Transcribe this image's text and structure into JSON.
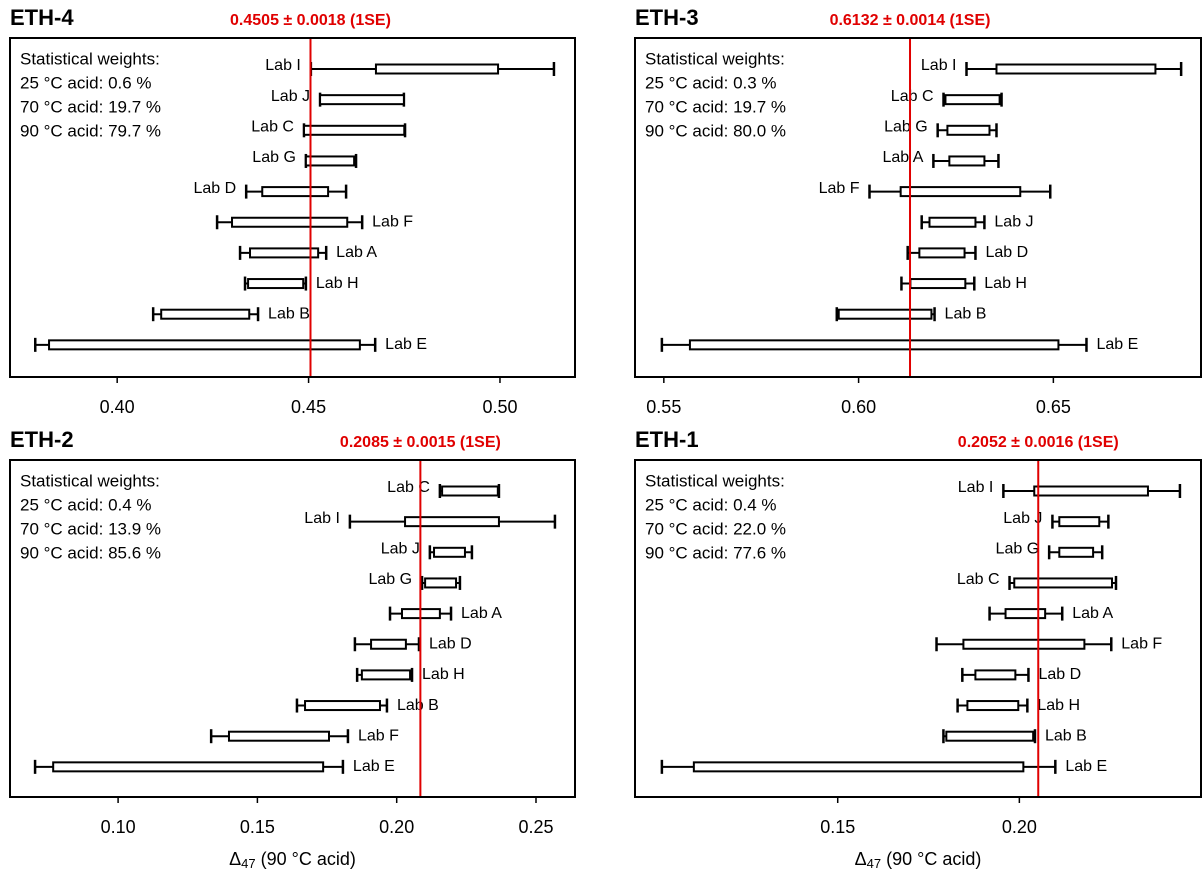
{
  "chart_data": [
    {
      "type": "range",
      "title": "ETH-4",
      "mean": 0.4505,
      "mean_label": "0.4505 ± 0.0018 (1SE)",
      "weights_title": "Statistical weights:",
      "weights": [
        "25 °C acid: 0.6 %",
        "70 °C acid: 19.7 %",
        "90 °C acid: 79.7 %"
      ],
      "categories": [
        "Lab I",
        "Lab J",
        "Lab C",
        "Lab G",
        "Lab D",
        "Lab F",
        "Lab A",
        "Lab H",
        "Lab B",
        "Lab E"
      ],
      "whisker_low": [
        0.4506,
        0.453,
        0.4488,
        0.4493,
        0.4337,
        0.4261,
        0.4321,
        0.4334,
        0.4094,
        0.3786
      ],
      "box_low": [
        0.4676,
        0.453,
        0.4488,
        0.4493,
        0.4379,
        0.43,
        0.4347,
        0.4342,
        0.4115,
        0.3822
      ],
      "box_high": [
        0.4995,
        0.4749,
        0.475,
        0.4619,
        0.4551,
        0.4601,
        0.4525,
        0.4486,
        0.4345,
        0.4634
      ],
      "whisker_high": [
        0.5141,
        0.4749,
        0.4752,
        0.4624,
        0.4598,
        0.464,
        0.4546,
        0.4493,
        0.4368,
        0.4674
      ],
      "xlim": [
        0.372,
        0.5196
      ],
      "xticks": [
        {
          "value": 0.4,
          "label": "0.40"
        },
        0.45,
        {
          "value": 0.5,
          "label": "0.50"
        }
      ],
      "color": "#e00000"
    },
    {
      "type": "range",
      "title": "ETH-3",
      "mean": 0.6132,
      "mean_label": "0.6132 ± 0.0014 (1SE)",
      "weights_title": "Statistical weights:",
      "weights": [
        "25 °C acid: 0.3 %",
        "70 °C acid: 19.7 %",
        "90 °C acid: 80.0 %"
      ],
      "categories": [
        "Lab I",
        "Lab C",
        "Lab G",
        "Lab A",
        "Lab F",
        "Lab J",
        "Lab D",
        "Lab H",
        "Lab B",
        "Lab E"
      ],
      "whisker_low": [
        0.6277,
        0.6218,
        0.6203,
        0.6192,
        0.6028,
        0.6162,
        0.6126,
        0.611,
        0.5944,
        0.5495
      ],
      "box_low": [
        0.6354,
        0.6223,
        0.6228,
        0.6233,
        0.6108,
        0.6182,
        0.6156,
        0.6133,
        0.5949,
        0.5567
      ],
      "box_high": [
        0.6762,
        0.6362,
        0.6336,
        0.6323,
        0.6415,
        0.63,
        0.6272,
        0.6274,
        0.6187,
        0.6513
      ],
      "whisker_high": [
        0.6828,
        0.6367,
        0.6354,
        0.6359,
        0.6492,
        0.6323,
        0.63,
        0.6297,
        0.6195,
        0.6585
      ],
      "xlim": [
        0.5426,
        0.6879
      ],
      "xticks": [
        0.55,
        {
          "value": 0.6,
          "label": "0.60"
        },
        0.65
      ],
      "color": "#e00000"
    },
    {
      "type": "range",
      "title": "ETH-2",
      "mean": 0.2085,
      "mean_label": "0.2085 ± 0.0015 (1SE)",
      "weights_title": "Statistical weights:",
      "weights": [
        "25 °C acid: 0.4 %",
        "70 °C acid: 13.9 %",
        "90 °C acid: 85.6 %"
      ],
      "categories": [
        "Lab C",
        "Lab I",
        "Lab J",
        "Lab G",
        "Lab A",
        "Lab D",
        "Lab H",
        "Lab B",
        "Lab F",
        "Lab E"
      ],
      "whisker_low": [
        0.2155,
        0.1832,
        0.2119,
        0.2091,
        0.1976,
        0.185,
        0.1858,
        0.1642,
        0.1334,
        0.0702
      ],
      "box_low": [
        0.2163,
        0.203,
        0.2134,
        0.2102,
        0.2019,
        0.1908,
        0.1875,
        0.1671,
        0.1398,
        0.0767
      ],
      "box_high": [
        0.2363,
        0.2367,
        0.2245,
        0.2213,
        0.2155,
        0.2033,
        0.2048,
        0.194,
        0.1757,
        0.1736
      ],
      "whisker_high": [
        0.2367,
        0.2568,
        0.227,
        0.2227,
        0.2195,
        0.208,
        0.2055,
        0.1965,
        0.1825,
        0.1807
      ],
      "xlim": [
        0.0612,
        0.264
      ],
      "xticks": [
        {
          "value": 0.1,
          "label": "0.10"
        },
        0.15,
        {
          "value": 0.2,
          "label": "0.20"
        },
        0.25
      ],
      "x_label": {
        "symbol": "Δ",
        "subscript": "47",
        "text": " (90 °C acid)"
      },
      "color": "#e00000"
    },
    {
      "type": "range",
      "title": "ETH-1",
      "mean": 0.2052,
      "mean_label": "0.2052 ± 0.0016 (1SE)",
      "weights_title": "Statistical weights:",
      "weights": [
        "25 °C acid: 0.4 %",
        "70 °C acid: 22.0 %",
        "90 °C acid: 77.6 %"
      ],
      "categories": [
        "Lab I",
        "Lab J",
        "Lab G",
        "Lab C",
        "Lab A",
        "Lab F",
        "Lab D",
        "Lab H",
        "Lab B",
        "Lab E"
      ],
      "whisker_low": [
        0.1956,
        0.2091,
        0.2082,
        0.1973,
        0.1918,
        0.1772,
        0.1843,
        0.183,
        0.1791,
        0.1016
      ],
      "box_low": [
        0.2041,
        0.211,
        0.211,
        0.1986,
        0.1962,
        0.1846,
        0.1879,
        0.1857,
        0.1799,
        0.1104
      ],
      "box_high": [
        0.2354,
        0.222,
        0.2203,
        0.2255,
        0.2071,
        0.2179,
        0.1989,
        0.1997,
        0.2038,
        0.2011
      ],
      "whisker_high": [
        0.2442,
        0.2245,
        0.2228,
        0.2266,
        0.2118,
        0.2253,
        0.2025,
        0.2022,
        0.2043,
        0.2099
      ],
      "xlim": [
        0.0942,
        0.25
      ],
      "xticks": [
        0.15,
        {
          "value": 0.2,
          "label": "0.20"
        }
      ],
      "x_label": {
        "symbol": "Δ",
        "subscript": "47",
        "text": " (90 °C acid)"
      },
      "color": "#e00000"
    }
  ]
}
